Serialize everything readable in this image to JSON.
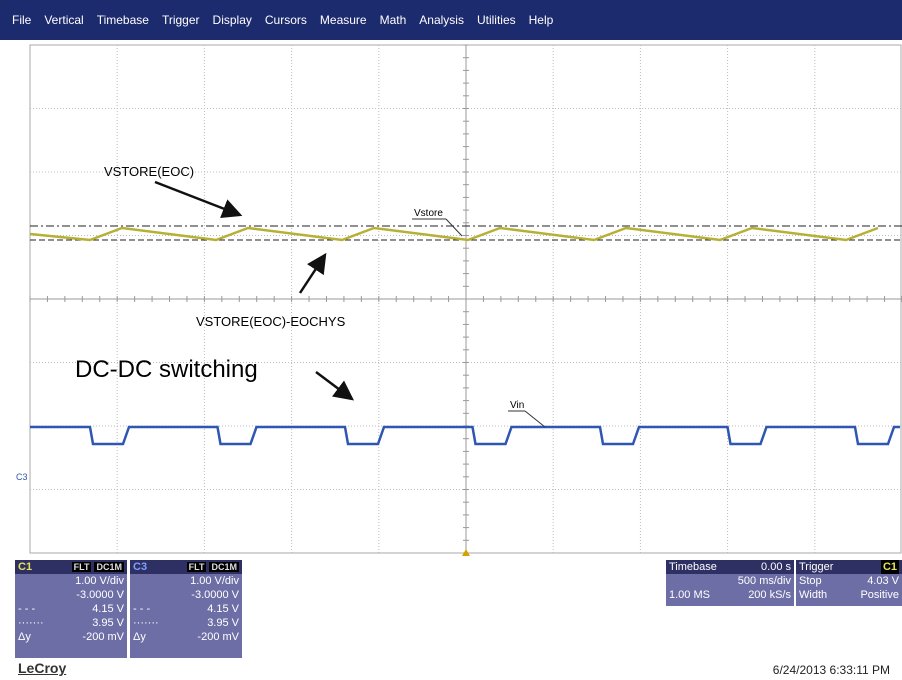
{
  "menu": [
    "File",
    "Vertical",
    "Timebase",
    "Trigger",
    "Display",
    "Cursors",
    "Measure",
    "Math",
    "Analysis",
    "Utilities",
    "Help"
  ],
  "annotations": {
    "vstore_eoc": "VSTORE(EOC)",
    "vstore_eoc_hys": "VSTORE(EOC)-EOCHYS",
    "dcdc": "DC-DC switching",
    "vstore": "Vstore",
    "vin": "Vin",
    "c3_marker": "C3"
  },
  "channels": [
    {
      "name": "C1",
      "badges": [
        "FLT",
        "DC1M"
      ],
      "scale": "1.00 V/div",
      "offset": "-3.0000 V",
      "rows": [
        {
          "symbol": "- - -",
          "value": "4.15 V"
        },
        {
          "symbol": "·······",
          "value": "3.95 V"
        },
        {
          "symbol": "Δy",
          "value": "-200 mV"
        }
      ]
    },
    {
      "name": "C3",
      "badges": [
        "FLT",
        "DC1M"
      ],
      "scale": "1.00 V/div",
      "offset": "-3.0000 V",
      "rows": [
        {
          "symbol": "- - -",
          "value": "4.15 V"
        },
        {
          "symbol": "·······",
          "value": "3.95 V"
        },
        {
          "symbol": "Δy",
          "value": "-200 mV"
        }
      ]
    }
  ],
  "timebase": {
    "label": "Timebase",
    "delay": "0.00 s",
    "scale": "500 ms/div",
    "samples": "1.00 MS",
    "rate": "200 kS/s"
  },
  "trigger": {
    "label": "Trigger",
    "source": "C1",
    "mode": "Stop",
    "level": "4.03 V",
    "type": "Width",
    "slope": "Positive"
  },
  "footer": {
    "brand": "LeCroy",
    "timestamp": "6/24/2013 6:33:11 PM"
  }
}
